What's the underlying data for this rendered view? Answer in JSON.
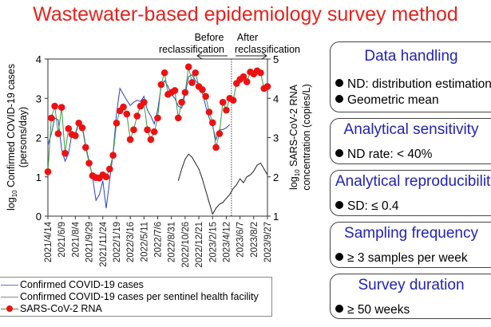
{
  "title": "Wastewater-based epidemiology survey method",
  "chart_data": {
    "type": "line",
    "x": [
      "2021/4/14",
      "2021/4/28",
      "2021/5/12",
      "2021/5/26",
      "2021/6/9",
      "2021/6/23",
      "2021/7/7",
      "2021/7/21",
      "2021/8/4",
      "2021/8/18",
      "2021/9/1",
      "2021/9/15",
      "2021/9/29",
      "2021/10/13",
      "2021/10/27",
      "2021/11/10",
      "2021/11/24",
      "2021/12/8",
      "2021/12/22",
      "2022/1/5",
      "2022/1/19",
      "2022/2/2",
      "2022/2/16",
      "2022/3/2",
      "2022/3/16",
      "2022/3/30",
      "2022/4/13",
      "2022/4/27",
      "2022/5/11",
      "2022/5/25",
      "2022/6/8",
      "2022/6/22",
      "2022/7/6",
      "2022/7/20",
      "2022/8/3",
      "2022/8/17",
      "2022/8/31",
      "2022/9/14",
      "2022/9/28",
      "2022/10/12",
      "2022/10/26",
      "2022/11/9",
      "2022/11/23",
      "2022/12/7",
      "2022/12/21",
      "2023/1/4",
      "2023/1/18",
      "2023/2/1",
      "2023/2/15",
      "2023/3/1",
      "2023/3/15",
      "2023/3/29",
      "2023/4/12",
      "2023/4/26",
      "2023/5/10",
      "2023/5/24",
      "2023/6/7",
      "2023/6/21",
      "2023/7/5",
      "2023/7/19",
      "2023/8/2",
      "2023/8/16",
      "2023/8/30",
      "2023/9/13",
      "2023/9/27"
    ],
    "x_tick_labels": [
      "2021/4/14",
      "2021/6/9",
      "2021/8/4",
      "2021/9/29",
      "2021/11/24",
      "2022/1/19",
      "2022/3/16",
      "2022/5/11",
      "2022/7/6",
      "2022/8/31",
      "2022/10/26",
      "2022/12/21",
      "2023/2/15",
      "2023/4/12",
      "2023/6/7",
      "2023/8/2",
      "2023/9/27"
    ],
    "ylabel": {
      "prefix": "log",
      "sub": "10",
      "rest": " Confirmed COVID-19 cases",
      "line2": "(persons/day)"
    },
    "y2label": {
      "prefix": "log",
      "sub": "10",
      "rest": " SARS-CoV-2 RNA",
      "line2": "concentration (copies/L)"
    },
    "ylim": [
      0,
      4
    ],
    "y_ticks": [
      "0",
      "1",
      "2",
      "3",
      "4"
    ],
    "y2lim": [
      1,
      5
    ],
    "y2_ticks": [
      "1",
      "2",
      "3",
      "4",
      "5"
    ],
    "grid": false,
    "legend_placement": "bottom-left",
    "series": [
      {
        "name": "Confirmed COVID-19 cases",
        "axis": "left",
        "color": "#2a3fd0",
        "marker": "none",
        "values": [
          1.8,
          2.1,
          2.5,
          2.45,
          1.7,
          1.4,
          1.6,
          2.1,
          2.1,
          2.4,
          2.3,
          1.8,
          1.4,
          1.0,
          0.4,
          0.55,
          0.9,
          0.2,
          0.9,
          1.6,
          2.6,
          3.25,
          3.1,
          2.95,
          2.82,
          2.9,
          2.95,
          2.92,
          3.05,
          2.7,
          2.55,
          2.35,
          2.7,
          3.3,
          3.45,
          3.3,
          3.1,
          3.0,
          2.8,
          2.75,
          3.1,
          3.55,
          3.6,
          3.45,
          3.35,
          3.15,
          2.8,
          2.5,
          2.3,
          1.95,
          2.2,
          2.2,
          2.25,
          2.33,
          null,
          null,
          null,
          null,
          null,
          null,
          null,
          null,
          null,
          null,
          null
        ]
      },
      {
        "name": "Confirmed COVID-19 cases per sentinel health facility",
        "axis": "left",
        "color": "#222222",
        "marker": "none",
        "values": [
          null,
          null,
          null,
          null,
          null,
          null,
          null,
          null,
          null,
          null,
          null,
          null,
          null,
          null,
          null,
          null,
          null,
          null,
          null,
          null,
          null,
          null,
          null,
          null,
          null,
          null,
          null,
          null,
          null,
          null,
          null,
          null,
          null,
          null,
          null,
          null,
          null,
          null,
          0.9,
          1.2,
          1.45,
          1.58,
          1.5,
          1.35,
          1.2,
          0.95,
          0.65,
          0.35,
          0.05,
          0.2,
          0.3,
          0.35,
          0.45,
          0.55,
          0.7,
          0.8,
          0.95,
          0.85,
          1.0,
          1.05,
          1.15,
          1.3,
          1.35,
          1.2,
          1.05
        ]
      },
      {
        "name": "SARS-CoV-2 RNA",
        "axis": "right",
        "color": "#ee1111",
        "line_color": "#3a9a3a",
        "marker": "circle",
        "values": [
          2.13,
          3.5,
          3.8,
          3.1,
          3.77,
          2.6,
          3.23,
          3.08,
          3.05,
          3.37,
          3.25,
          2.75,
          2.35,
          2.03,
          1.98,
          1.97,
          2.05,
          2.0,
          2.2,
          2.55,
          3.37,
          3.68,
          3.78,
          3.6,
          2.95,
          3.2,
          3.55,
          3.8,
          3.9,
          3.2,
          2.95,
          3.15,
          3.5,
          4.35,
          4.65,
          4.1,
          4.15,
          4.2,
          3.5,
          3.9,
          4.15,
          4.8,
          4.4,
          4.65,
          4.3,
          4.22,
          4.05,
          3.65,
          3.38,
          2.75,
          3.1,
          3.9,
          3.7,
          4.0,
          3.95,
          4.38,
          4.48,
          4.55,
          4.42,
          4.67,
          4.62,
          4.7,
          4.65,
          4.25,
          4.3
        ]
      }
    ],
    "annotations": {
      "reclassification_date": "2023/5/3",
      "before": [
        "Before",
        "reclassification"
      ],
      "after": [
        "After",
        "reclassification"
      ]
    }
  },
  "legend": [
    {
      "label": "Confirmed COVID-19 cases",
      "color": "#6670c8"
    },
    {
      "label": "Confirmed COVID-19 cases per sentinel health facility",
      "color": "#888888"
    },
    {
      "label": "SARS-CoV-2 RNA",
      "color": "#ee1111"
    }
  ],
  "criteria": [
    {
      "title": "Data handling",
      "bullets": [
        "ND: distribution estimation",
        "Geometric mean"
      ]
    },
    {
      "title": "Analytical sensitivity",
      "bullets": [
        "ND rate: < 40%"
      ]
    },
    {
      "title": "Analytical reproducibility",
      "bullets": [
        "SD: ≤ 0.4"
      ]
    },
    {
      "title": "Sampling frequency",
      "bullets": [
        "≥ 3 samples per week"
      ]
    },
    {
      "title": "Survey duration",
      "bullets": [
        "≥ 50 weeks"
      ]
    }
  ]
}
